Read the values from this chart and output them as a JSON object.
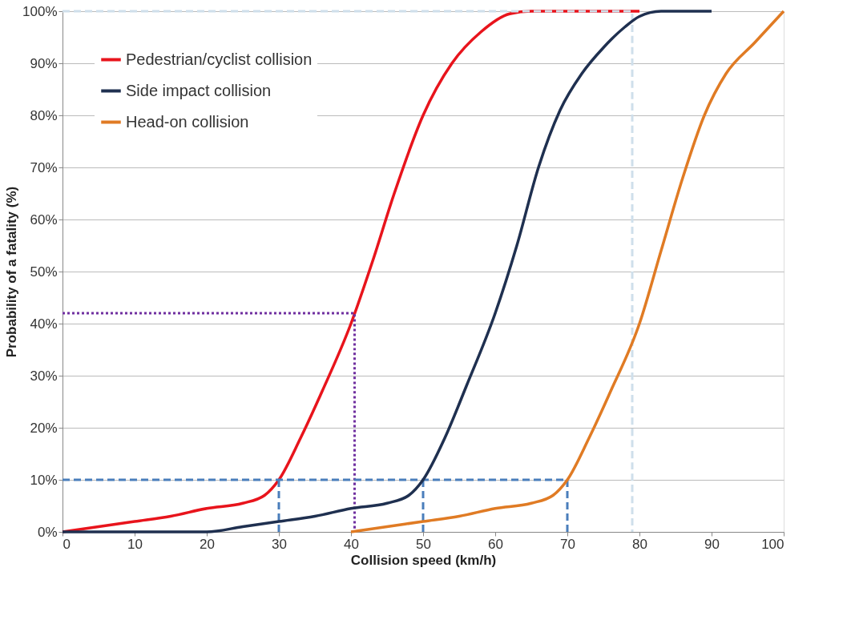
{
  "chart_data": {
    "type": "line",
    "xlabel": "Collision speed (km/h)",
    "ylabel": "Probability of a fatality (%)",
    "xlim": [
      0,
      100
    ],
    "xticks": [
      0,
      10,
      20,
      30,
      40,
      50,
      60,
      70,
      80,
      90,
      100
    ],
    "ylim": [
      0,
      100
    ],
    "yticks": [
      {
        "value": 0,
        "label": "0%"
      },
      {
        "value": 10,
        "label": "10%"
      },
      {
        "value": 20,
        "label": "20%"
      },
      {
        "value": 30,
        "label": "30%"
      },
      {
        "value": 40,
        "label": "40%"
      },
      {
        "value": 50,
        "label": "50%"
      },
      {
        "value": 60,
        "label": "60%"
      },
      {
        "value": 70,
        "label": "70%"
      },
      {
        "value": 80,
        "label": "80%"
      },
      {
        "value": 90,
        "label": "90%"
      },
      {
        "value": 100,
        "label": "100%"
      }
    ],
    "grid": "y",
    "legend": "top left",
    "marker": "none",
    "line_style": "solid",
    "series": [
      {
        "name": "Pedestrian/cyclist collision",
        "color": "#e8141c",
        "x": [
          0,
          5,
          10,
          15,
          20,
          25,
          28,
          30,
          33,
          36,
          40,
          43,
          46,
          50,
          54,
          58,
          62,
          65,
          70,
          75,
          80
        ],
        "values": [
          0,
          1,
          2,
          3,
          4.5,
          5.5,
          7,
          10,
          18,
          27,
          40,
          52,
          65,
          80,
          90,
          96,
          99.5,
          100,
          100,
          100,
          100
        ]
      },
      {
        "name": "Side impact collision",
        "color": "#1f3050",
        "x": [
          0,
          10,
          20,
          25,
          30,
          35,
          40,
          45,
          48,
          50,
          53,
          56,
          60,
          63,
          66,
          69,
          72,
          75,
          78,
          80,
          83,
          86,
          90
        ],
        "values": [
          0,
          0,
          0,
          1,
          2,
          3,
          4.5,
          5.5,
          7,
          10,
          18,
          28,
          42,
          55,
          70,
          81,
          88,
          93,
          97,
          99,
          100,
          100,
          100
        ]
      },
      {
        "name": "Head-on collision",
        "color": "#e07b24",
        "x": [
          40,
          45,
          50,
          55,
          60,
          65,
          68,
          70,
          73,
          76,
          80,
          83,
          86,
          89,
          92,
          96,
          100
        ],
        "values": [
          0,
          1,
          2,
          3,
          4.5,
          5.5,
          7,
          10,
          18,
          27,
          40,
          54,
          68,
          80,
          88,
          94,
          100
        ]
      },
      {
        "color": "#4a7ebb",
        "line_style": "dashed",
        "x": [
          0,
          70
        ],
        "values": [
          10,
          10
        ]
      },
      {
        "color": "#4a7ebb",
        "line_style": "dashed",
        "x": [
          30,
          30
        ],
        "values": [
          0,
          10
        ]
      },
      {
        "color": "#4a7ebb",
        "line_style": "dashed",
        "x": [
          50,
          50
        ],
        "values": [
          0,
          10
        ]
      },
      {
        "color": "#4a7ebb",
        "line_style": "dashed",
        "x": [
          70,
          70
        ],
        "values": [
          0,
          10
        ]
      },
      {
        "color": "#7030a0",
        "line_style": "dotted",
        "x": [
          0,
          40.5,
          40.5
        ],
        "values": [
          42,
          42,
          0
        ]
      },
      {
        "color": "#cfdfeb",
        "line_style": "dashed",
        "x": [
          0,
          79,
          79
        ],
        "values": [
          100,
          100,
          0
        ]
      }
    ]
  }
}
